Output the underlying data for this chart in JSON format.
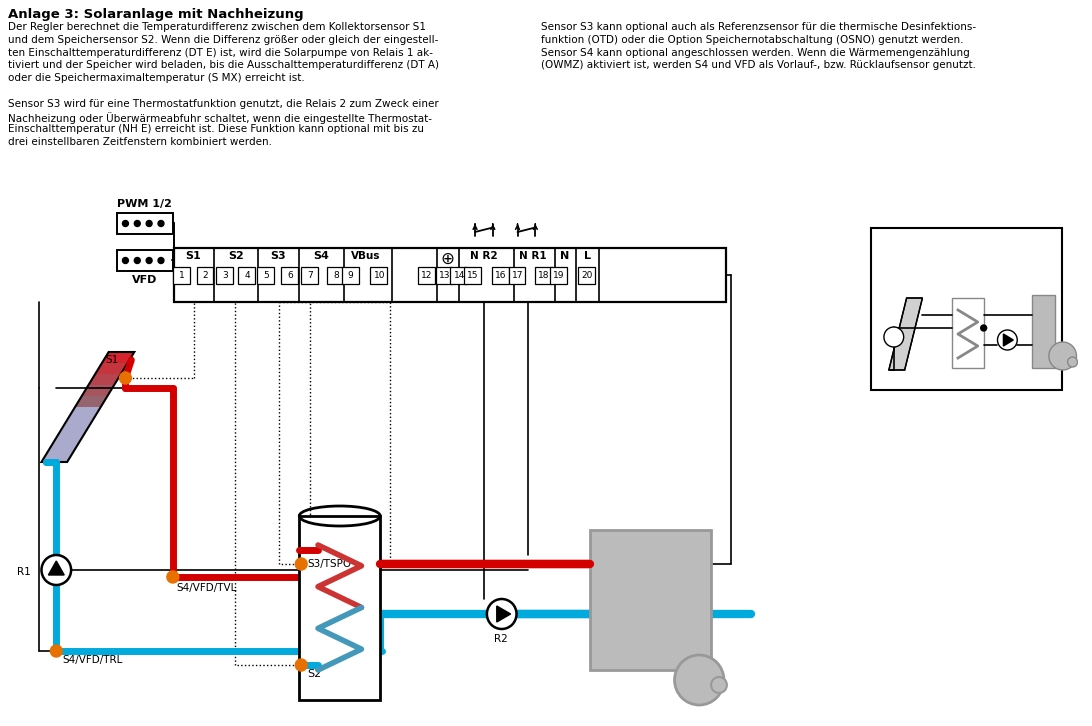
{
  "title": "Anlage 3: Solaranlage mit Nachheizung",
  "text_col1": [
    "Der Regler berechnet die Temperaturdifferenz zwischen dem Kollektorsensor S1",
    "und dem Speichersensor S2. Wenn die Differenz größer oder gleich der eingestell-",
    "ten Einschalttemperaturdifferenz (DT E) ist, wird die Solarpumpe von Relais 1 ak-",
    "tiviert und der Speicher wird beladen, bis die Ausschalttemperaturdifferenz (DT A)",
    "oder die Speichermaximaltemperatur (S MX) erreicht ist.",
    "",
    "Sensor S3 wird für eine Thermostatfunktion genutzt, die Relais 2 zum Zweck einer",
    "Nachheizung oder Überwärmeabfuhr schaltet, wenn die eingestellte Thermostat-",
    "Einschalttemperatur (NH E) erreicht ist. Diese Funktion kann optional mit bis zu",
    "drei einstellbaren Zeitfenstern kombiniert werden."
  ],
  "text_col2": [
    "Sensor S3 kann optional auch als Referenzsensor für die thermische Desinfektions-",
    "funktion (OTD) oder die Option Speichernotabschaltung (OSNO) genutzt werden.",
    "Sensor S4 kann optional angeschlossen werden. Wenn die Wärmemengenzählung",
    "(OWMZ) aktiviert ist, werden S4 und VFD als Vorlauf-, bzw. Rücklaufsensor genutzt."
  ],
  "red": "#d40000",
  "blue": "#00aadd",
  "orange": "#e87000",
  "gray": "#888888",
  "lightgray": "#bbbbbb",
  "darkgray": "#999999",
  "black": "#000000",
  "white": "#ffffff",
  "col2_gray": "#aaaaaa"
}
